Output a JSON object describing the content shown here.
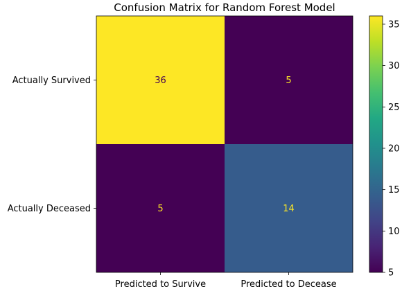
{
  "chart_data": {
    "type": "heatmap",
    "title": "Confusion Matrix for Random Forest Model",
    "row_labels": [
      "Actually Survived",
      "Actually Deceased"
    ],
    "col_labels": [
      "Predicted to Survive",
      "Predicted to Decease"
    ],
    "values": [
      [
        36,
        5
      ],
      [
        5,
        14
      ]
    ],
    "cell_labels": [
      [
        "36",
        "5"
      ],
      [
        "5",
        "14"
      ]
    ],
    "colormap": "viridis",
    "colorbar": {
      "min": 5,
      "max": 36,
      "ticks": [
        5,
        10,
        15,
        20,
        25,
        30,
        35
      ],
      "tick_labels": [
        "5",
        "10",
        "15",
        "20",
        "25",
        "30",
        "35"
      ]
    },
    "annotation_colors": {
      "on_dark": "#fde725",
      "on_light": "#440154"
    }
  }
}
